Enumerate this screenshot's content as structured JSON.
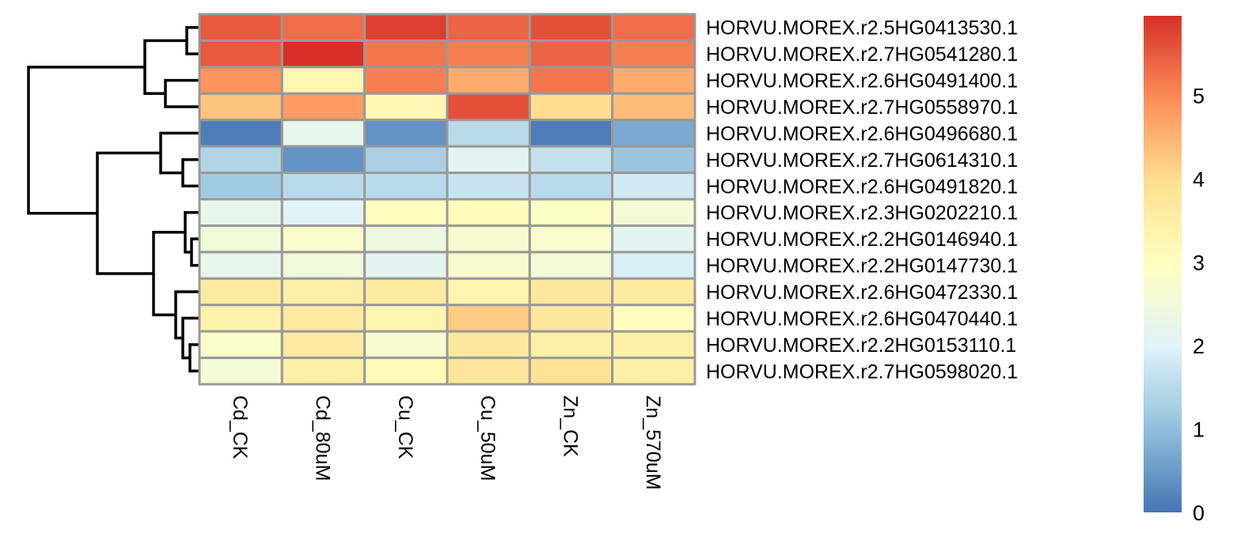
{
  "chart_data": {
    "type": "heatmap",
    "title": "",
    "xlabel": "",
    "ylabel": "",
    "columns": [
      "Cd_CK",
      "Cd_80uM",
      "Cu_CK",
      "Cu_50uM",
      "Zn_CK",
      "Zn_570uM"
    ],
    "rows": [
      "HORVU.MOREX.r2.5HG0413530.1",
      "HORVU.MOREX.r2.7HG0541280.1",
      "HORVU.MOREX.r2.6HG0491400.1",
      "HORVU.MOREX.r2.7HG0558970.1",
      "HORVU.MOREX.r2.6HG0496680.1",
      "HORVU.MOREX.r2.7HG0614310.1",
      "HORVU.MOREX.r2.6HG0491820.1",
      "HORVU.MOREX.r2.3HG0202210.1",
      "HORVU.MOREX.r2.2HG0146940.1",
      "HORVU.MOREX.r2.2HG0147730.1",
      "HORVU.MOREX.r2.6HG0472330.1",
      "HORVU.MOREX.r2.6HG0470440.1",
      "HORVU.MOREX.r2.2HG0153110.1",
      "HORVU.MOREX.r2.7HG0598020.1"
    ],
    "values": [
      [
        5.5,
        5.3,
        5.8,
        5.4,
        5.6,
        5.3
      ],
      [
        5.5,
        6.0,
        5.2,
        5.1,
        5.4,
        5.1
      ],
      [
        4.9,
        3.2,
        5.1,
        4.6,
        5.2,
        4.6
      ],
      [
        4.3,
        4.8,
        3.2,
        5.6,
        4.0,
        4.4
      ],
      [
        0.1,
        2.2,
        0.4,
        1.5,
        0.1,
        0.7
      ],
      [
        1.4,
        0.4,
        1.3,
        2.1,
        1.6,
        1.1
      ],
      [
        1.2,
        1.5,
        1.5,
        1.7,
        1.5,
        1.8
      ],
      [
        2.2,
        2.0,
        3.0,
        3.1,
        2.9,
        2.6
      ],
      [
        2.5,
        2.8,
        2.4,
        2.7,
        2.8,
        2.1
      ],
      [
        2.2,
        2.5,
        2.1,
        2.7,
        2.6,
        1.9
      ],
      [
        3.6,
        3.5,
        3.6,
        3.3,
        3.7,
        3.6
      ],
      [
        3.4,
        3.6,
        3.3,
        4.2,
        3.7,
        3.0
      ],
      [
        2.8,
        3.6,
        2.7,
        3.7,
        3.5,
        3.5
      ],
      [
        2.6,
        3.5,
        3.1,
        3.8,
        3.9,
        3.5
      ]
    ],
    "color_scale": {
      "min": 0,
      "max": 5.95,
      "ticks": [
        0,
        1,
        2,
        3,
        4,
        5
      ],
      "colors": [
        "#4575b4",
        "#91bfdb",
        "#e0f3f8",
        "#ffffbf",
        "#fee090",
        "#fc8d59",
        "#d73027"
      ]
    },
    "cell_border_color": "#999999",
    "row_dendrogram": true,
    "legend_placement": "right"
  }
}
